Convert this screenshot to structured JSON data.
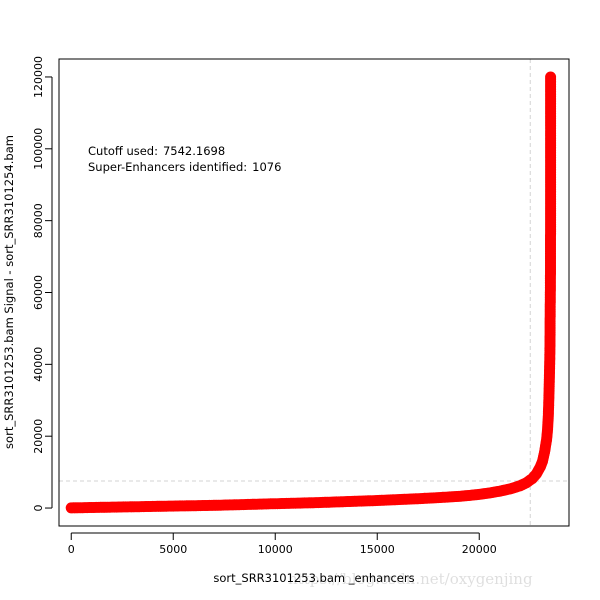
{
  "chart_data": {
    "type": "scatter",
    "title": "",
    "xlabel": "sort_SRR3101253.bam _enhancers",
    "ylabel": "sort_SRR3101253.bam Signal -  sort_SRR3101254.bam",
    "xlim": [
      -600,
      24400
    ],
    "ylim": [
      -5000,
      125000
    ],
    "xticks": [
      0,
      5000,
      10000,
      15000,
      20000
    ],
    "yticks": [
      0,
      20000,
      40000,
      60000,
      80000,
      100000,
      120000
    ],
    "grid": false,
    "legend": "none",
    "connected": true,
    "point_color": "#ff0000",
    "reference_line_color": "#d3d3d3",
    "cutoff": 7542.1698,
    "cutoff_x": 22500,
    "annotations": [
      {
        "label": "Cutoff used:",
        "value": "7542.1698"
      },
      {
        "label": "Super-Enhancers identified:",
        "value": "1076"
      }
    ],
    "series": [
      {
        "x": [
          0,
          1000,
          2000,
          3000,
          4000,
          5000,
          6000,
          7000,
          8000,
          9000,
          10000,
          11000,
          12000,
          13000,
          14000,
          15000,
          16000,
          17000,
          18000,
          19000,
          19500,
          20000,
          20500,
          21000,
          21500,
          22000,
          22300,
          22600,
          22800,
          23000,
          23100,
          23200,
          23300,
          23350,
          23380,
          23400,
          23420,
          23440,
          23460,
          23470,
          23475,
          23480,
          23485,
          23490,
          23492,
          23494,
          23496,
          23497,
          23498,
          23499,
          23500
        ],
        "y": [
          50,
          150,
          250,
          350,
          450,
          550,
          650,
          750,
          900,
          1050,
          1200,
          1350,
          1500,
          1700,
          1900,
          2100,
          2350,
          2600,
          2900,
          3250,
          3500,
          3800,
          4200,
          4700,
          5300,
          6200,
          7000,
          8200,
          9500,
          11500,
          13000,
          15500,
          19000,
          22000,
          25000,
          28000,
          32000,
          37000,
          42000,
          47000,
          52000,
          56000,
          60000,
          64000,
          67000,
          72000,
          77000,
          84000,
          88000,
          95500,
          120000
        ]
      }
    ]
  }
}
